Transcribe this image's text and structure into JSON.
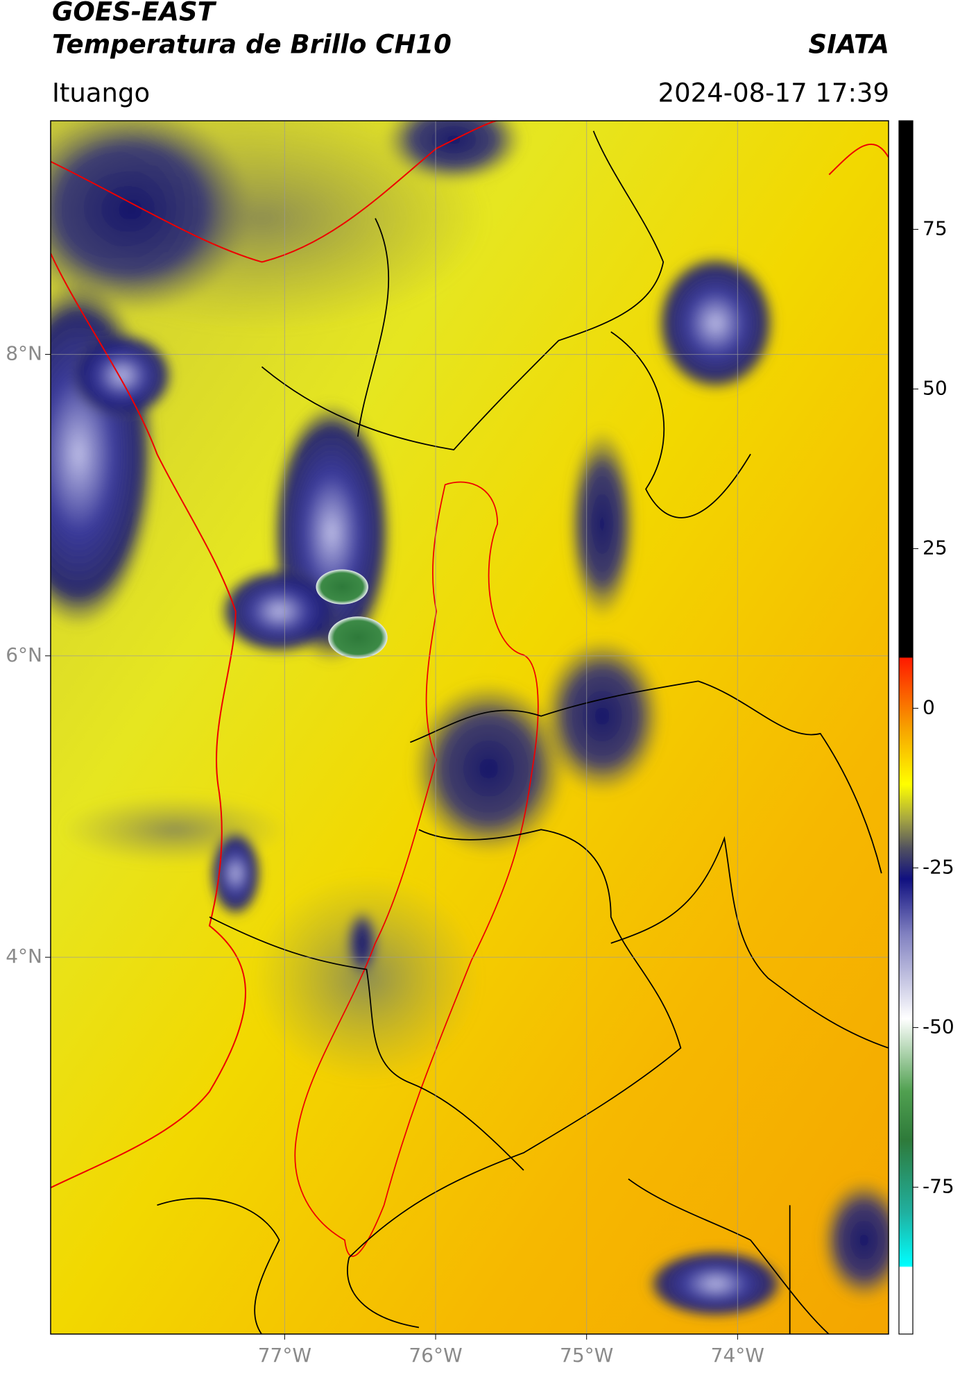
{
  "header": {
    "title": "GOES-EAST",
    "subtitle": "Temperatura de Brillo CH10",
    "source": "SIATA",
    "location": "Ituango",
    "datetime": "2024-08-17 17:39"
  },
  "map": {
    "xlim": [
      -78.55,
      -73.0
    ],
    "ylim": [
      1.5,
      9.55
    ],
    "xticks": [
      {
        "value": -77,
        "label": "77°W"
      },
      {
        "value": -76,
        "label": "76°W"
      },
      {
        "value": -75,
        "label": "75°W"
      },
      {
        "value": -74,
        "label": "74°W"
      }
    ],
    "yticks": [
      {
        "value": 8,
        "label": "8°N"
      },
      {
        "value": 6,
        "label": "6°N"
      },
      {
        "value": 4,
        "label": "4°N"
      }
    ],
    "grid": true,
    "grid_color": "#9a9a9a"
  },
  "colorbar": {
    "lim": [
      -98,
      92
    ],
    "ticks": [
      75,
      50,
      25,
      0,
      -25,
      -50,
      -75
    ]
  }
}
